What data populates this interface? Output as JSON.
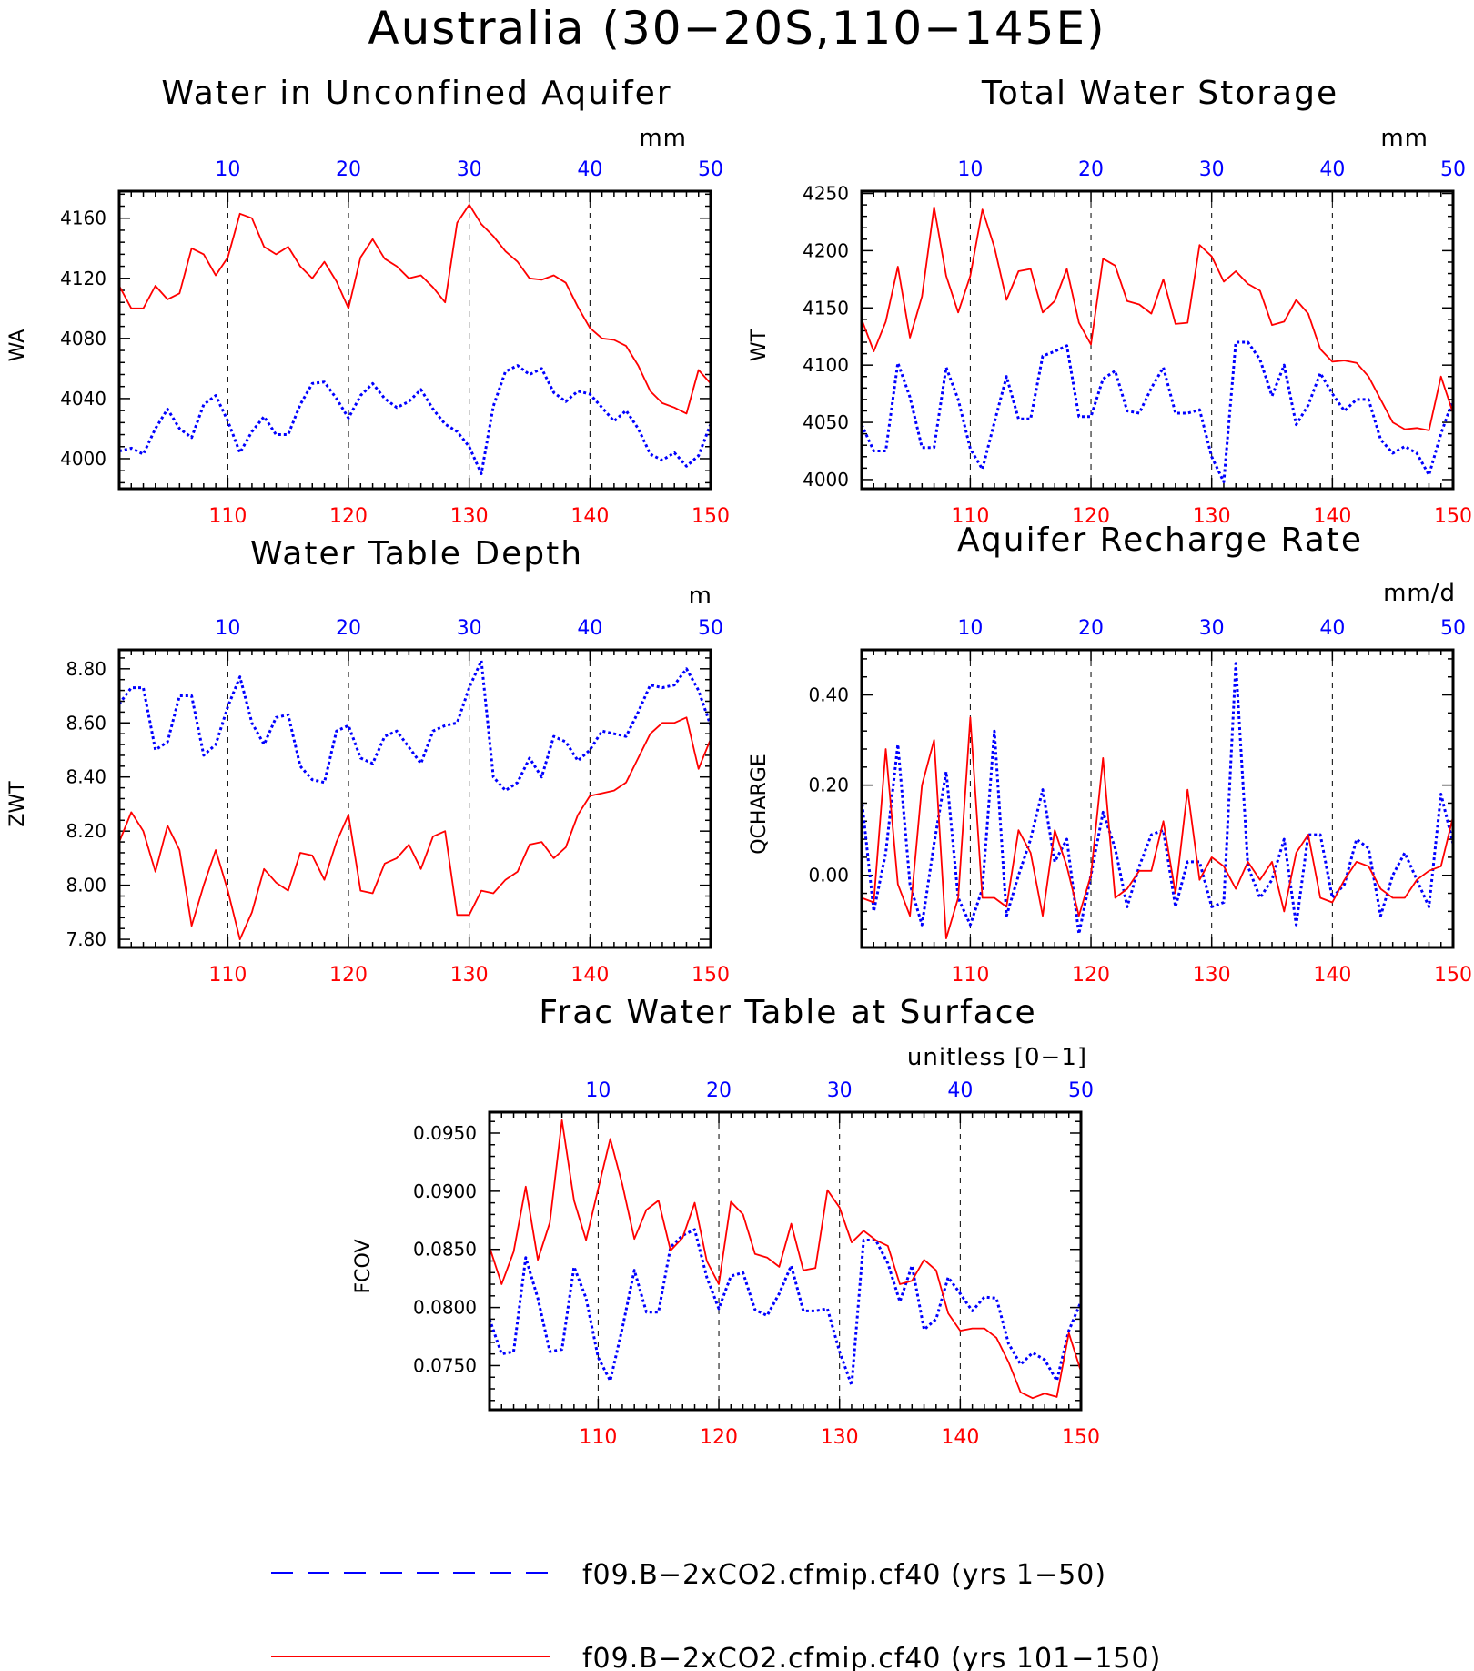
{
  "figure": {
    "title": "Australia (30−20S,110−145E)",
    "x_bottom": {
      "min": 101,
      "max": 150,
      "ticks": [
        110,
        120,
        130,
        140,
        150
      ],
      "color": "#ff0000"
    },
    "x_top": {
      "min": 1,
      "max": 50,
      "ticks": [
        10,
        20,
        30,
        40,
        50
      ],
      "color": "#0000ff"
    }
  },
  "legend": [
    {
      "label": "f09.B−2xCO2.cfmip.cf40 (yrs 1−50)",
      "color": "#0000ff",
      "style": "dashed"
    },
    {
      "label": "f09.B−2xCO2.cfmip.cf40 (yrs 101−150)",
      "color": "#ff0000",
      "style": "solid"
    }
  ],
  "chart_data": [
    {
      "type": "line",
      "title": "Water in Unconfined Aquifer",
      "ylabel": "WA",
      "units": "mm",
      "ylim": [
        3980,
        4178
      ],
      "yticks": [
        4000,
        4040,
        4080,
        4120,
        4160
      ],
      "ytick_labels": [
        "4000",
        "4040",
        "4080",
        "4120",
        "4160"
      ],
      "grid": "vertical dashed at 110, 120, 130, 140",
      "series": [
        {
          "key": "yrs1-50",
          "color": "#0000ff",
          "style": "dotted",
          "values": [
            4005,
            4007,
            4003,
            4020,
            4033,
            4020,
            4014,
            4036,
            4042,
            4025,
            4004,
            4018,
            4028,
            4016,
            4016,
            4036,
            4050,
            4051,
            4040,
            4027,
            4042,
            4050,
            4040,
            4034,
            4038,
            4046,
            4033,
            4023,
            4018,
            4008,
            3990,
            4035,
            4058,
            4062,
            4056,
            4060,
            4044,
            4038,
            4045,
            4043,
            4034,
            4025,
            4032,
            4020,
            4003,
            3999,
            4004,
            3995,
            4002,
            4023
          ]
        },
        {
          "key": "yrs101-150",
          "color": "#ff0000",
          "style": "solid",
          "values": [
            4115,
            4100,
            4100,
            4115,
            4106,
            4110,
            4140,
            4136,
            4122,
            4134,
            4163,
            4160,
            4141,
            4136,
            4141,
            4128,
            4120,
            4131,
            4118,
            4100,
            4134,
            4146,
            4133,
            4128,
            4120,
            4122,
            4114,
            4104,
            4157,
            4169,
            4156,
            4148,
            4138,
            4131,
            4120,
            4119,
            4122,
            4117,
            4101,
            4087,
            4080,
            4079,
            4075,
            4062,
            4045,
            4037,
            4034,
            4030,
            4059,
            4050
          ]
        }
      ]
    },
    {
      "type": "line",
      "title": "Total Water Storage",
      "ylabel": "WT",
      "units": "mm",
      "ylim": [
        3992,
        4252
      ],
      "yticks": [
        4000,
        4050,
        4100,
        4150,
        4200,
        4250
      ],
      "ytick_labels": [
        "4000",
        "4050",
        "4100",
        "4150",
        "4200",
        "4250"
      ],
      "grid": "vertical dashed at 110, 120, 130, 140",
      "series": [
        {
          "key": "yrs1-50",
          "color": "#0000ff",
          "style": "dotted",
          "values": [
            4048,
            4025,
            4025,
            4102,
            4072,
            4028,
            4028,
            4098,
            4070,
            4027,
            4009,
            4050,
            4090,
            4053,
            4053,
            4108,
            4112,
            4117,
            4055,
            4055,
            4088,
            4095,
            4060,
            4058,
            4080,
            4098,
            4058,
            4058,
            4061,
            4020,
            3998,
            4120,
            4120,
            4105,
            4073,
            4100,
            4048,
            4065,
            4093,
            4075,
            4060,
            4070,
            4070,
            4035,
            4023,
            4029,
            4023,
            4004,
            4040,
            4070
          ]
        },
        {
          "key": "yrs101-150",
          "color": "#ff0000",
          "style": "solid",
          "values": [
            4140,
            4112,
            4138,
            4186,
            4124,
            4160,
            4238,
            4178,
            4146,
            4178,
            4236,
            4203,
            4157,
            4182,
            4184,
            4146,
            4156,
            4184,
            4137,
            4118,
            4193,
            4187,
            4156,
            4153,
            4145,
            4175,
            4136,
            4137,
            4205,
            4195,
            4173,
            4182,
            4171,
            4165,
            4135,
            4138,
            4157,
            4145,
            4114,
            4103,
            4104,
            4102,
            4090,
            4070,
            4050,
            4044,
            4045,
            4043,
            4090,
            4058
          ]
        }
      ]
    },
    {
      "type": "line",
      "title": "Water Table Depth",
      "ylabel": "ZWT",
      "units": "m",
      "ylim": [
        7.77,
        8.87
      ],
      "yticks": [
        7.8,
        8.0,
        8.2,
        8.4,
        8.6,
        8.8
      ],
      "ytick_labels": [
        "7.80",
        "8.00",
        "8.20",
        "8.40",
        "8.60",
        "8.80"
      ],
      "grid": "vertical dashed at 110, 120, 130, 140",
      "series": [
        {
          "key": "yrs1-50",
          "color": "#0000ff",
          "style": "dotted",
          "values": [
            8.67,
            8.73,
            8.73,
            8.5,
            8.53,
            8.7,
            8.7,
            8.48,
            8.52,
            8.66,
            8.77,
            8.6,
            8.52,
            8.62,
            8.63,
            8.44,
            8.39,
            8.38,
            8.57,
            8.59,
            8.47,
            8.45,
            8.55,
            8.57,
            8.51,
            8.45,
            8.57,
            8.59,
            8.6,
            8.73,
            8.83,
            8.4,
            8.35,
            8.38,
            8.47,
            8.4,
            8.55,
            8.53,
            8.46,
            8.5,
            8.57,
            8.56,
            8.55,
            8.64,
            8.74,
            8.73,
            8.74,
            8.8,
            8.72,
            8.59
          ]
        },
        {
          "key": "yrs101-150",
          "color": "#ff0000",
          "style": "solid",
          "values": [
            8.16,
            8.27,
            8.2,
            8.05,
            8.22,
            8.13,
            7.85,
            8.0,
            8.13,
            7.98,
            7.8,
            7.9,
            8.06,
            8.01,
            7.98,
            8.12,
            8.11,
            8.02,
            8.16,
            8.26,
            7.98,
            7.97,
            8.08,
            8.1,
            8.15,
            8.06,
            8.18,
            8.2,
            7.89,
            7.89,
            7.98,
            7.97,
            8.02,
            8.05,
            8.15,
            8.16,
            8.1,
            8.14,
            8.26,
            8.33,
            8.34,
            8.35,
            8.38,
            8.47,
            8.56,
            8.6,
            8.6,
            8.62,
            8.43,
            8.54
          ]
        }
      ]
    },
    {
      "type": "line",
      "title": "Aquifer Recharge Rate",
      "ylabel": "QCHARGE",
      "units": "mm/d",
      "ylim": [
        -0.16,
        0.5
      ],
      "yticks": [
        0.0,
        0.2,
        0.4
      ],
      "ytick_labels": [
        "0.00",
        "0.20",
        "0.40"
      ],
      "grid": "vertical dashed at 110, 120, 130, 140",
      "series": [
        {
          "key": "yrs1-50",
          "color": "#0000ff",
          "style": "dotted",
          "values": [
            0.17,
            -0.08,
            0.05,
            0.29,
            -0.02,
            -0.11,
            0.07,
            0.23,
            -0.05,
            -0.11,
            -0.03,
            0.32,
            -0.09,
            0.0,
            0.08,
            0.19,
            0.03,
            0.08,
            -0.13,
            0.0,
            0.14,
            0.06,
            -0.07,
            0.02,
            0.09,
            0.1,
            -0.07,
            0.03,
            0.03,
            -0.07,
            -0.06,
            0.47,
            0.02,
            -0.05,
            -0.01,
            0.08,
            -0.11,
            0.09,
            0.09,
            -0.05,
            -0.02,
            0.08,
            0.06,
            -0.09,
            0.0,
            0.05,
            -0.01,
            -0.07,
            0.18,
            0.07
          ]
        },
        {
          "key": "yrs101-150",
          "color": "#ff0000",
          "style": "solid",
          "values": [
            -0.05,
            -0.06,
            0.28,
            -0.02,
            -0.09,
            0.2,
            0.3,
            -0.14,
            -0.05,
            0.35,
            -0.05,
            -0.05,
            -0.07,
            0.1,
            0.05,
            -0.09,
            0.1,
            0.02,
            -0.09,
            0.0,
            0.26,
            -0.05,
            -0.03,
            0.01,
            0.01,
            0.12,
            -0.04,
            0.19,
            -0.01,
            0.04,
            0.02,
            -0.03,
            0.03,
            -0.01,
            0.03,
            -0.08,
            0.05,
            0.09,
            -0.05,
            -0.06,
            -0.01,
            0.03,
            0.02,
            -0.03,
            -0.05,
            -0.05,
            -0.01,
            0.01,
            0.02,
            0.13
          ]
        }
      ]
    },
    {
      "type": "line",
      "title": "Frac Water Table at Surface",
      "ylabel": "FCOV",
      "units": "unitless [0−1]",
      "ylim": [
        0.0712,
        0.0968
      ],
      "yticks": [
        0.075,
        0.08,
        0.085,
        0.09,
        0.095
      ],
      "ytick_labels": [
        "0.0750",
        "0.0800",
        "0.0850",
        "0.0900",
        "0.0950"
      ],
      "grid": "vertical dashed at 110, 120, 130, 140",
      "series": [
        {
          "key": "yrs1-50",
          "color": "#0000ff",
          "style": "dotted",
          "values": [
            0.079,
            0.076,
            0.0762,
            0.0843,
            0.0808,
            0.0762,
            0.0764,
            0.0835,
            0.0808,
            0.0757,
            0.0737,
            0.0782,
            0.0832,
            0.0796,
            0.0796,
            0.0852,
            0.0862,
            0.0867,
            0.0826,
            0.0799,
            0.0827,
            0.083,
            0.0798,
            0.0793,
            0.0812,
            0.0836,
            0.0797,
            0.0797,
            0.0799,
            0.0762,
            0.0733,
            0.0858,
            0.0858,
            0.0838,
            0.0805,
            0.0836,
            0.0781,
            0.079,
            0.0826,
            0.0812,
            0.0797,
            0.0809,
            0.0808,
            0.0769,
            0.0751,
            0.0761,
            0.0755,
            0.0737,
            0.078,
            0.0805
          ]
        },
        {
          "key": "yrs101-150",
          "color": "#ff0000",
          "style": "solid",
          "values": [
            0.0852,
            0.082,
            0.0848,
            0.0904,
            0.0841,
            0.0873,
            0.0961,
            0.0892,
            0.0858,
            0.0902,
            0.0945,
            0.0906,
            0.0859,
            0.0884,
            0.0892,
            0.0849,
            0.086,
            0.089,
            0.084,
            0.082,
            0.0891,
            0.088,
            0.0846,
            0.0843,
            0.0835,
            0.0872,
            0.0832,
            0.0834,
            0.0901,
            0.0886,
            0.0856,
            0.0866,
            0.0858,
            0.0853,
            0.082,
            0.0823,
            0.0841,
            0.0832,
            0.0795,
            0.078,
            0.0782,
            0.0782,
            0.0774,
            0.0753,
            0.0727,
            0.0722,
            0.0726,
            0.0723,
            0.0778,
            0.0745
          ]
        }
      ]
    }
  ]
}
